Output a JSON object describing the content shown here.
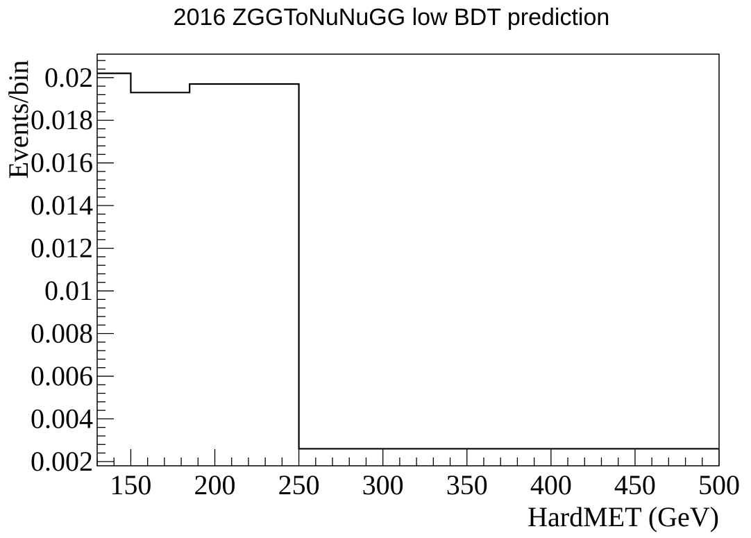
{
  "chart_data": {
    "type": "step",
    "title": "2016 ZGGToNuNuGG low BDT prediction",
    "xlabel": "HardMET (GeV)",
    "ylabel": "Events/bin",
    "xlim": [
      130,
      500
    ],
    "ylim": [
      0.0018,
      0.0211
    ],
    "x_ticks": [
      {
        "value": 150,
        "label": "150"
      },
      {
        "value": 200,
        "label": "200"
      },
      {
        "value": 250,
        "label": "250"
      },
      {
        "value": 300,
        "label": "300"
      },
      {
        "value": 350,
        "label": "350"
      },
      {
        "value": 400,
        "label": "400"
      },
      {
        "value": 450,
        "label": "450"
      },
      {
        "value": 500,
        "label": "500"
      }
    ],
    "y_ticks": [
      {
        "value": 0.002,
        "label": "0.002"
      },
      {
        "value": 0.004,
        "label": "0.004"
      },
      {
        "value": 0.006,
        "label": "0.006"
      },
      {
        "value": 0.008,
        "label": "0.008"
      },
      {
        "value": 0.01,
        "label": "0.01"
      },
      {
        "value": 0.012,
        "label": "0.012"
      },
      {
        "value": 0.014,
        "label": "0.014"
      },
      {
        "value": 0.016,
        "label": "0.016"
      },
      {
        "value": 0.018,
        "label": "0.018"
      },
      {
        "value": 0.02,
        "label": "0.02"
      }
    ],
    "bins": [
      {
        "low": 130,
        "high": 150,
        "value": 0.0202
      },
      {
        "low": 150,
        "high": 185,
        "value": 0.0193
      },
      {
        "low": 185,
        "high": 250,
        "value": 0.0197
      },
      {
        "low": 250,
        "high": 500,
        "value": 0.0026
      }
    ],
    "grid": false,
    "legend": "none"
  }
}
